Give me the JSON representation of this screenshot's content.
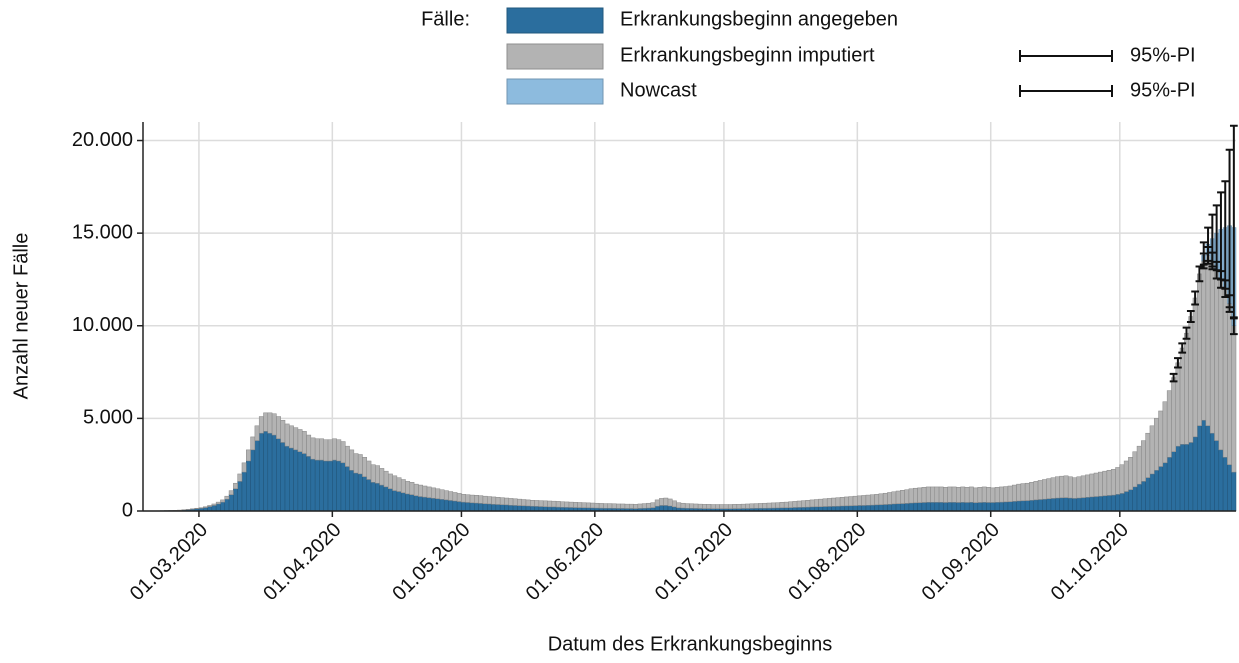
{
  "chart_data": {
    "type": "bar",
    "stacked": true,
    "grid": true,
    "legend_title": "Fälle:",
    "x_label": "Datum des Erkrankungsbeginns",
    "y_label": "Anzahl neuer Fälle",
    "xlim": [
      "2020-02-17",
      "2020-10-28"
    ],
    "xticks": [
      {
        "value": "2020-03-01",
        "label": "01.03.2020"
      },
      {
        "value": "2020-04-01",
        "label": "01.04.2020"
      },
      {
        "value": "2020-05-01",
        "label": "01.05.2020"
      },
      {
        "value": "2020-06-01",
        "label": "01.06.2020"
      },
      {
        "value": "2020-07-01",
        "label": "01.07.2020"
      },
      {
        "value": "2020-08-01",
        "label": "01.08.2020"
      },
      {
        "value": "2020-09-01",
        "label": "01.09.2020"
      },
      {
        "value": "2020-10-01",
        "label": "01.10.2020"
      }
    ],
    "ylim": [
      0,
      21000
    ],
    "yticks": [
      0,
      {
        "value": 5000,
        "label": "5.000"
      },
      {
        "value": 10000,
        "label": "10.000"
      },
      {
        "value": 15000,
        "label": "15.000"
      },
      {
        "value": 20000,
        "label": "20.000"
      }
    ],
    "x": [
      "2020-02-18",
      "2020-02-19",
      "2020-02-20",
      "2020-02-21",
      "2020-02-22",
      "2020-02-23",
      "2020-02-24",
      "2020-02-25",
      "2020-02-26",
      "2020-02-27",
      "2020-02-28",
      "2020-02-29",
      "2020-03-01",
      "2020-03-02",
      "2020-03-03",
      "2020-03-04",
      "2020-03-05",
      "2020-03-06",
      "2020-03-07",
      "2020-03-08",
      "2020-03-09",
      "2020-03-10",
      "2020-03-11",
      "2020-03-12",
      "2020-03-13",
      "2020-03-14",
      "2020-03-15",
      "2020-03-16",
      "2020-03-17",
      "2020-03-18",
      "2020-03-19",
      "2020-03-20",
      "2020-03-21",
      "2020-03-22",
      "2020-03-23",
      "2020-03-24",
      "2020-03-25",
      "2020-03-26",
      "2020-03-27",
      "2020-03-28",
      "2020-03-29",
      "2020-03-30",
      "2020-03-31",
      "2020-04-01",
      "2020-04-02",
      "2020-04-03",
      "2020-04-04",
      "2020-04-05",
      "2020-04-06",
      "2020-04-07",
      "2020-04-08",
      "2020-04-09",
      "2020-04-10",
      "2020-04-11",
      "2020-04-12",
      "2020-04-13",
      "2020-04-14",
      "2020-04-15",
      "2020-04-16",
      "2020-04-17",
      "2020-04-18",
      "2020-04-19",
      "2020-04-20",
      "2020-04-21",
      "2020-04-22",
      "2020-04-23",
      "2020-04-24",
      "2020-04-25",
      "2020-04-26",
      "2020-04-27",
      "2020-04-28",
      "2020-04-29",
      "2020-04-30",
      "2020-05-01",
      "2020-05-02",
      "2020-05-03",
      "2020-05-04",
      "2020-05-05",
      "2020-05-06",
      "2020-05-07",
      "2020-05-08",
      "2020-05-09",
      "2020-05-10",
      "2020-05-11",
      "2020-05-12",
      "2020-05-13",
      "2020-05-14",
      "2020-05-15",
      "2020-05-16",
      "2020-05-17",
      "2020-05-18",
      "2020-05-19",
      "2020-05-20",
      "2020-05-21",
      "2020-05-22",
      "2020-05-23",
      "2020-05-24",
      "2020-05-25",
      "2020-05-26",
      "2020-05-27",
      "2020-05-28",
      "2020-05-29",
      "2020-05-30",
      "2020-05-31",
      "2020-06-01",
      "2020-06-02",
      "2020-06-03",
      "2020-06-04",
      "2020-06-05",
      "2020-06-06",
      "2020-06-07",
      "2020-06-08",
      "2020-06-09",
      "2020-06-10",
      "2020-06-11",
      "2020-06-12",
      "2020-06-13",
      "2020-06-14",
      "2020-06-15",
      "2020-06-16",
      "2020-06-17",
      "2020-06-18",
      "2020-06-19",
      "2020-06-20",
      "2020-06-21",
      "2020-06-22",
      "2020-06-23",
      "2020-06-24",
      "2020-06-25",
      "2020-06-26",
      "2020-06-27",
      "2020-06-28",
      "2020-06-29",
      "2020-06-30",
      "2020-07-01",
      "2020-07-02",
      "2020-07-03",
      "2020-07-04",
      "2020-07-05",
      "2020-07-06",
      "2020-07-07",
      "2020-07-08",
      "2020-07-09",
      "2020-07-10",
      "2020-07-11",
      "2020-07-12",
      "2020-07-13",
      "2020-07-14",
      "2020-07-15",
      "2020-07-16",
      "2020-07-17",
      "2020-07-18",
      "2020-07-19",
      "2020-07-20",
      "2020-07-21",
      "2020-07-22",
      "2020-07-23",
      "2020-07-24",
      "2020-07-25",
      "2020-07-26",
      "2020-07-27",
      "2020-07-28",
      "2020-07-29",
      "2020-07-30",
      "2020-07-31",
      "2020-08-01",
      "2020-08-02",
      "2020-08-03",
      "2020-08-04",
      "2020-08-05",
      "2020-08-06",
      "2020-08-07",
      "2020-08-08",
      "2020-08-09",
      "2020-08-10",
      "2020-08-11",
      "2020-08-12",
      "2020-08-13",
      "2020-08-14",
      "2020-08-15",
      "2020-08-16",
      "2020-08-17",
      "2020-08-18",
      "2020-08-19",
      "2020-08-20",
      "2020-08-21",
      "2020-08-22",
      "2020-08-23",
      "2020-08-24",
      "2020-08-25",
      "2020-08-26",
      "2020-08-27",
      "2020-08-28",
      "2020-08-29",
      "2020-08-30",
      "2020-08-31",
      "2020-09-01",
      "2020-09-02",
      "2020-09-03",
      "2020-09-04",
      "2020-09-05",
      "2020-09-06",
      "2020-09-07",
      "2020-09-08",
      "2020-09-09",
      "2020-09-10",
      "2020-09-11",
      "2020-09-12",
      "2020-09-13",
      "2020-09-14",
      "2020-09-15",
      "2020-09-16",
      "2020-09-17",
      "2020-09-18",
      "2020-09-19",
      "2020-09-20",
      "2020-09-21",
      "2020-09-22",
      "2020-09-23",
      "2020-09-24",
      "2020-09-25",
      "2020-09-26",
      "2020-09-27",
      "2020-09-28",
      "2020-09-29",
      "2020-09-30",
      "2020-10-01",
      "2020-10-02",
      "2020-10-03",
      "2020-10-04",
      "2020-10-05",
      "2020-10-06",
      "2020-10-07",
      "2020-10-08",
      "2020-10-09",
      "2020-10-10",
      "2020-10-11",
      "2020-10-12",
      "2020-10-13",
      "2020-10-14",
      "2020-10-15",
      "2020-10-16",
      "2020-10-17",
      "2020-10-18",
      "2020-10-19",
      "2020-10-20",
      "2020-10-21",
      "2020-10-22",
      "2020-10-23",
      "2020-10-24",
      "2020-10-25",
      "2020-10-26",
      "2020-10-27"
    ],
    "series": [
      {
        "name": "Erkrankungsbeginn angegeben",
        "color": "#2b6e9e",
        "values": [
          8,
          8,
          12,
          16,
          20,
          24,
          32,
          40,
          56,
          72,
          95,
          120,
          145,
          185,
          240,
          300,
          380,
          480,
          640,
          880,
          1200,
          1600,
          2100,
          2700,
          3300,
          3800,
          4200,
          4300,
          4200,
          4100,
          3900,
          3700,
          3500,
          3400,
          3300,
          3200,
          3100,
          2950,
          2800,
          2750,
          2750,
          2700,
          2700,
          2750,
          2700,
          2600,
          2400,
          2200,
          2050,
          2000,
          1850,
          1700,
          1550,
          1500,
          1400,
          1300,
          1200,
          1100,
          1050,
          980,
          920,
          880,
          820,
          780,
          750,
          720,
          690,
          660,
          630,
          600,
          570,
          540,
          510,
          480,
          460,
          440,
          430,
          410,
          390,
          380,
          360,
          350,
          340,
          330,
          310,
          300,
          290,
          280,
          270,
          260,
          250,
          240,
          230,
          220,
          220,
          210,
          200,
          195,
          190,
          185,
          180,
          175,
          170,
          165,
          160,
          155,
          150,
          150,
          145,
          140,
          140,
          135,
          135,
          130,
          140,
          150,
          160,
          180,
          260,
          300,
          300,
          270,
          220,
          170,
          160,
          150,
          145,
          140,
          135,
          130,
          130,
          125,
          125,
          125,
          125,
          125,
          130,
          130,
          135,
          135,
          140,
          145,
          150,
          150,
          155,
          160,
          165,
          170,
          175,
          180,
          190,
          195,
          200,
          210,
          220,
          225,
          230,
          240,
          245,
          250,
          260,
          270,
          275,
          280,
          290,
          300,
          300,
          310,
          320,
          330,
          340,
          350,
          360,
          380,
          390,
          400,
          410,
          430,
          440,
          450,
          460,
          470,
          470,
          470,
          470,
          460,
          470,
          470,
          460,
          470,
          460,
          470,
          450,
          460,
          470,
          460,
          460,
          470,
          480,
          490,
          500,
          520,
          540,
          550,
          560,
          580,
          600,
          620,
          640,
          660,
          680,
          700,
          710,
          720,
          700,
          680,
          700,
          720,
          740,
          760,
          780,
          800,
          820,
          840,
          860,
          900,
          950,
          1050,
          1150,
          1300,
          1450,
          1600,
          1800,
          2000,
          2200,
          2400,
          2600,
          2900,
          3200,
          3500,
          3600,
          3600,
          3700,
          4000,
          4600,
          4900,
          4600,
          4200,
          3800,
          3300,
          2900,
          2500,
          2100
        ]
      },
      {
        "name": "Erkrankungsbeginn imputiert",
        "color": "#b3b3b3",
        "values": [
          2,
          2,
          3,
          4,
          5,
          6,
          8,
          10,
          14,
          18,
          25,
          30,
          35,
          45,
          60,
          80,
          100,
          120,
          160,
          220,
          300,
          400,
          500,
          600,
          700,
          800,
          900,
          1000,
          1100,
          1150,
          1200,
          1200,
          1200,
          1200,
          1200,
          1200,
          1200,
          1150,
          1150,
          1150,
          1150,
          1150,
          1150,
          1150,
          1150,
          1150,
          1100,
          1100,
          1050,
          1050,
          1050,
          1000,
          950,
          950,
          900,
          850,
          800,
          800,
          750,
          720,
          680,
          670,
          630,
          620,
          600,
          580,
          560,
          540,
          520,
          500,
          480,
          460,
          440,
          420,
          420,
          420,
          420,
          420,
          410,
          400,
          400,
          390,
          380,
          370,
          370,
          360,
          350,
          340,
          330,
          320,
          320,
          320,
          320,
          320,
          310,
          310,
          300,
          295,
          290,
          285,
          280,
          275,
          270,
          265,
          260,
          255,
          250,
          250,
          245,
          240,
          240,
          235,
          235,
          230,
          240,
          250,
          260,
          270,
          340,
          380,
          400,
          380,
          330,
          280,
          260,
          250,
          245,
          240,
          235,
          230,
          230,
          225,
          225,
          225,
          225,
          225,
          230,
          230,
          235,
          245,
          250,
          255,
          260,
          270,
          275,
          280,
          285,
          300,
          305,
          320,
          330,
          345,
          360,
          370,
          380,
          395,
          410,
          420,
          435,
          450,
          460,
          470,
          485,
          500,
          510,
          520,
          540,
          550,
          560,
          570,
          590,
          610,
          640,
          660,
          690,
          720,
          740,
          770,
          790,
          800,
          820,
          830,
          830,
          830,
          830,
          820,
          830,
          830,
          820,
          830,
          820,
          830,
          800,
          820,
          830,
          820,
          790,
          810,
          820,
          830,
          850,
          880,
          910,
          930,
          940,
          970,
          1000,
          1030,
          1060,
          1090,
          1120,
          1150,
          1170,
          1180,
          1150,
          1120,
          1150,
          1180,
          1210,
          1240,
          1270,
          1300,
          1330,
          1360,
          1390,
          1450,
          1550,
          1650,
          1750,
          1900,
          2050,
          2200,
          2400,
          2600,
          2800,
          3000,
          3300,
          3600,
          4000,
          4500,
          5200,
          6000,
          6800,
          7500,
          8200,
          8600,
          9200,
          9300,
          9200,
          9200,
          9100,
          8700,
          7900
        ],
        "interval": {
          "name": "95%-PI",
          "x": [
            "2020-10-13",
            "2020-10-14",
            "2020-10-15",
            "2020-10-16",
            "2020-10-17",
            "2020-10-18",
            "2020-10-19",
            "2020-10-20",
            "2020-10-21",
            "2020-10-22",
            "2020-10-23",
            "2020-10-24",
            "2020-10-25",
            "2020-10-26",
            "2020-10-27"
          ],
          "lower": [
            7000,
            7750,
            8550,
            9300,
            10200,
            11150,
            12400,
            13100,
            13350,
            13050,
            12550,
            12050,
            11550,
            10750,
            9550
          ],
          "upper": [
            7400,
            8250,
            9050,
            9900,
            10800,
            11850,
            13200,
            13900,
            14250,
            13950,
            13450,
            12950,
            12450,
            11650,
            10450
          ]
        }
      },
      {
        "name": "Nowcast",
        "color": "#8dbbde",
        "x": [
          "2020-10-20",
          "2020-10-21",
          "2020-10-22",
          "2020-10-23",
          "2020-10-24",
          "2020-10-25",
          "2020-10-26",
          "2020-10-27"
        ],
        "values": [
          300,
          600,
          1200,
          2000,
          2700,
          3300,
          4200,
          5300
        ],
        "interval": {
          "name": "95%-PI",
          "x": [
            "2020-10-20",
            "2020-10-21",
            "2020-10-22",
            "2020-10-23",
            "2020-10-24",
            "2020-10-25",
            "2020-10-26",
            "2020-10-27"
          ],
          "lower": [
            13300,
            13500,
            13200,
            13000,
            12500,
            12000,
            11000,
            10400
          ],
          "upper": [
            14500,
            15300,
            16000,
            16500,
            17200,
            17800,
            19500,
            20800
          ]
        }
      }
    ]
  }
}
